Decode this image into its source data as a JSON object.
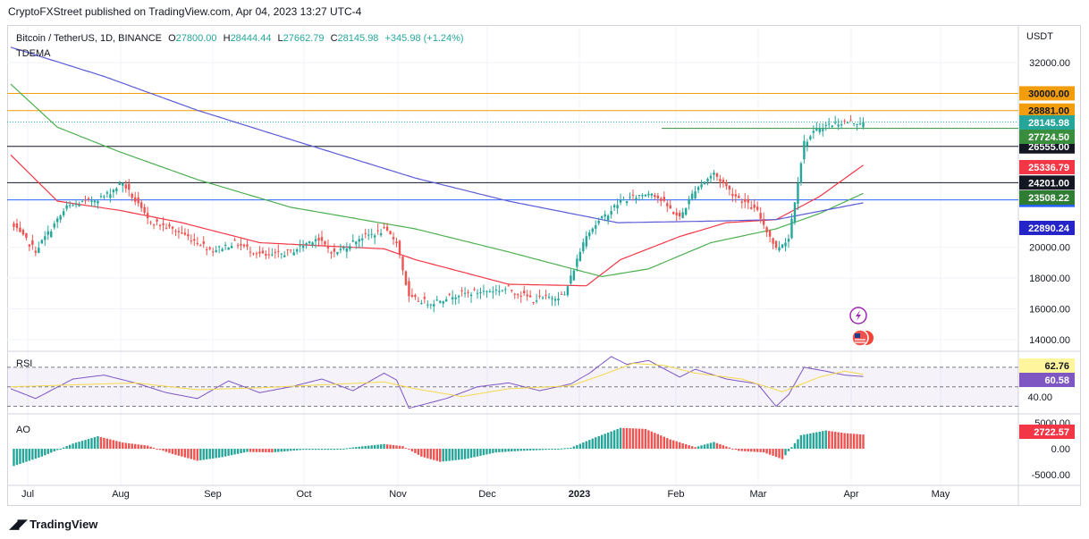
{
  "caption": "CryptoFXStreet published on TradingView.com, Apr 04, 2023 13:27 UTC-4",
  "footer_brand": "TradingView",
  "colors": {
    "up": "#26a69a",
    "down": "#ef5350",
    "ema_fast": "#f23645",
    "ema_mid": "#4caf50",
    "ema_slow": "#5b5bd6",
    "rsi": "#7e57c2",
    "rsi_ma": "#f5d94a"
  },
  "header": {
    "symbol": "Bitcoin / TetherUS, 1D, BINANCE",
    "open_label": "O",
    "open": "27800.00",
    "high_label": "H",
    "high": "28444.44",
    "low_label": "L",
    "low": "27662.79",
    "close_label": "C",
    "close": "28145.98",
    "change": "+345.98 (+1.24%)",
    "indicator": "TDEMA",
    "currency": "USDT"
  },
  "chart_data": [
    {
      "type": "candlestick",
      "title": "Bitcoin / TetherUS, 1D, BINANCE",
      "ylim": [
        14000,
        32000
      ],
      "y_ticks": [
        32000,
        20000,
        18000,
        16000,
        14000
      ],
      "y_tick_labels": [
        "32000.00",
        "20000.00",
        "18000.00",
        "16000.00",
        "14000.00"
      ],
      "x_ticks": [
        "Jul",
        "Aug",
        "Sep",
        "Oct",
        "Nov",
        "Dec",
        "2023",
        "Feb",
        "Mar",
        "Apr",
        "May"
      ],
      "horizontal_levels": [
        {
          "value": 30000,
          "label": "30000.00",
          "color": "#f29d0b"
        },
        {
          "value": 28881,
          "label": "28881.00",
          "color": "#f29d0b"
        },
        {
          "value": 26555,
          "label": "26555.00",
          "color": "#131722"
        },
        {
          "value": 24201,
          "label": "24201.00",
          "color": "#131722"
        },
        {
          "value": 23078,
          "label": "23078.00",
          "color": "#2962ff"
        }
      ],
      "series_value_labels": [
        {
          "value": 28145.98,
          "label": "28145.98",
          "color": "#26a69a"
        },
        {
          "value": 27724.5,
          "label": "27724.50",
          "color": "#388e3c"
        },
        {
          "value": 25336.79,
          "label": "25336.79",
          "color": "#f23645"
        },
        {
          "value": 23508.22,
          "label": "23508.22",
          "color": "#2e7d32"
        },
        {
          "value": 22890.24,
          "label": "22890.24",
          "color": "#2424c9"
        }
      ],
      "close_anchors": [
        [
          0,
          21500
        ],
        [
          8,
          19800
        ],
        [
          18,
          22600
        ],
        [
          30,
          23300
        ],
        [
          36,
          24200
        ],
        [
          44,
          21800
        ],
        [
          55,
          20900
        ],
        [
          65,
          19800
        ],
        [
          72,
          20300
        ],
        [
          82,
          19400
        ],
        [
          90,
          19700
        ],
        [
          98,
          20600
        ],
        [
          104,
          19600
        ],
        [
          112,
          20600
        ],
        [
          120,
          21100
        ],
        [
          124,
          20400
        ],
        [
          128,
          16700
        ],
        [
          135,
          16400
        ],
        [
          142,
          16900
        ],
        [
          150,
          17100
        ],
        [
          160,
          17300
        ],
        [
          168,
          16600
        ],
        [
          178,
          16900
        ],
        [
          185,
          20900
        ],
        [
          196,
          23000
        ],
        [
          206,
          23600
        ],
        [
          215,
          21900
        ],
        [
          220,
          23800
        ],
        [
          226,
          24800
        ],
        [
          232,
          23500
        ],
        [
          240,
          22300
        ],
        [
          246,
          19900
        ],
        [
          250,
          20600
        ],
        [
          255,
          26800
        ],
        [
          260,
          27800
        ],
        [
          266,
          28100
        ],
        [
          274,
          28146
        ]
      ],
      "emas": [
        {
          "name": "fast",
          "anchors": [
            [
              0,
              26000
            ],
            [
              15,
              23000
            ],
            [
              35,
              22400
            ],
            [
              55,
              21600
            ],
            [
              80,
              20300
            ],
            [
              100,
              20100
            ],
            [
              120,
              19900
            ],
            [
              130,
              19200
            ],
            [
              160,
              17600
            ],
            [
              185,
              17500
            ],
            [
              196,
              19200
            ],
            [
              215,
              20700
            ],
            [
              230,
              21600
            ],
            [
              246,
              21800
            ],
            [
              260,
              23300
            ],
            [
              274,
              25337
            ]
          ]
        },
        {
          "name": "mid",
          "anchors": [
            [
              0,
              30600
            ],
            [
              15,
              27800
            ],
            [
              35,
              26200
            ],
            [
              60,
              24400
            ],
            [
              90,
              22600
            ],
            [
              130,
              21200
            ],
            [
              160,
              19700
            ],
            [
              190,
              18100
            ],
            [
              205,
              18600
            ],
            [
              225,
              20300
            ],
            [
              246,
              21200
            ],
            [
              260,
              22200
            ],
            [
              274,
              23508
            ]
          ]
        },
        {
          "name": "slow",
          "anchors": [
            [
              0,
              33000
            ],
            [
              30,
              31100
            ],
            [
              60,
              28900
            ],
            [
              90,
              27000
            ],
            [
              130,
              24500
            ],
            [
              160,
              23000
            ],
            [
              195,
              21600
            ],
            [
              225,
              21700
            ],
            [
              246,
              21800
            ],
            [
              274,
              22890
            ]
          ]
        }
      ]
    },
    {
      "type": "line",
      "title": "RSI",
      "ylim": [
        25,
        80
      ],
      "levels": [
        70,
        50,
        30
      ],
      "y_tick_labels": [
        "40.00"
      ],
      "series": [
        {
          "name": "RSI",
          "value_label": "60.58",
          "anchors": [
            [
              0,
              48
            ],
            [
              8,
              38
            ],
            [
              20,
              58
            ],
            [
              30,
              62
            ],
            [
              40,
              54
            ],
            [
              50,
              44
            ],
            [
              60,
              38
            ],
            [
              70,
              56
            ],
            [
              80,
              44
            ],
            [
              90,
              50
            ],
            [
              100,
              58
            ],
            [
              110,
              46
            ],
            [
              120,
              64
            ],
            [
              124,
              57
            ],
            [
              128,
              28
            ],
            [
              140,
              38
            ],
            [
              150,
              50
            ],
            [
              160,
              54
            ],
            [
              170,
              46
            ],
            [
              180,
              53
            ],
            [
              186,
              64
            ],
            [
              193,
              81
            ],
            [
              198,
              73
            ],
            [
              205,
              77
            ],
            [
              215,
              60
            ],
            [
              220,
              68
            ],
            [
              230,
              58
            ],
            [
              240,
              53
            ],
            [
              246,
              30
            ],
            [
              250,
              42
            ],
            [
              255,
              70
            ],
            [
              262,
              66
            ],
            [
              268,
              62
            ],
            [
              274,
              60.58
            ]
          ]
        },
        {
          "name": "RSI MA",
          "value_label": "62.76",
          "anchors": [
            [
              0,
              50
            ],
            [
              20,
              52
            ],
            [
              40,
              54
            ],
            [
              60,
              47
            ],
            [
              80,
              49
            ],
            [
              100,
              52
            ],
            [
              120,
              55
            ],
            [
              130,
              48
            ],
            [
              145,
              40
            ],
            [
              160,
              48
            ],
            [
              180,
              51
            ],
            [
              190,
              62
            ],
            [
              200,
              74
            ],
            [
              210,
              72
            ],
            [
              220,
              64
            ],
            [
              235,
              58
            ],
            [
              248,
              45
            ],
            [
              260,
              60
            ],
            [
              268,
              66
            ],
            [
              274,
              62.76
            ]
          ]
        }
      ]
    },
    {
      "type": "bar",
      "title": "AO",
      "ylim": [
        -6500,
        6000
      ],
      "y_ticks": [
        5000,
        0,
        -5000
      ],
      "y_tick_labels": [
        "5000.00",
        "0.00",
        "-5000.00"
      ],
      "value_label": "2722.57",
      "anchors": [
        [
          0,
          -3500
        ],
        [
          10,
          -1500
        ],
        [
          20,
          1000
        ],
        [
          28,
          2400
        ],
        [
          36,
          1200
        ],
        [
          44,
          600
        ],
        [
          52,
          -1000
        ],
        [
          60,
          -2300
        ],
        [
          68,
          -1600
        ],
        [
          76,
          -600
        ],
        [
          84,
          -700
        ],
        [
          94,
          -200
        ],
        [
          104,
          -200
        ],
        [
          112,
          400
        ],
        [
          120,
          900
        ],
        [
          126,
          500
        ],
        [
          132,
          -1500
        ],
        [
          138,
          -2500
        ],
        [
          146,
          -2000
        ],
        [
          156,
          -700
        ],
        [
          164,
          -400
        ],
        [
          172,
          -200
        ],
        [
          180,
          200
        ],
        [
          188,
          2200
        ],
        [
          196,
          4000
        ],
        [
          204,
          3800
        ],
        [
          212,
          1800
        ],
        [
          220,
          300
        ],
        [
          226,
          1300
        ],
        [
          234,
          -400
        ],
        [
          242,
          -700
        ],
        [
          248,
          -2000
        ],
        [
          254,
          2600
        ],
        [
          262,
          3500
        ],
        [
          268,
          3000
        ],
        [
          274,
          2722.57
        ]
      ]
    }
  ]
}
